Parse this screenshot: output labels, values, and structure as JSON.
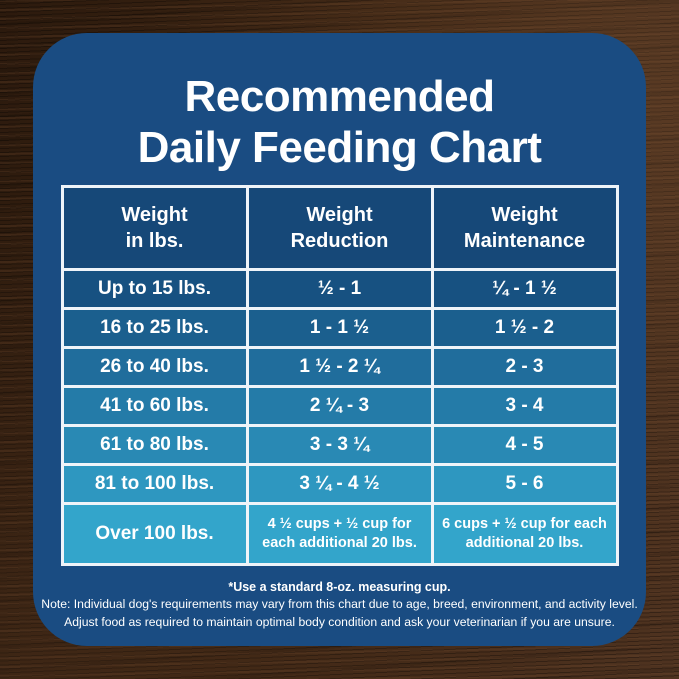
{
  "colors": {
    "card_background": "#1A4C82",
    "header_cell": "#164878",
    "table_border": "#EFF4F9",
    "text": "#FFFFFF",
    "row_colors": [
      "#175181",
      "#1B5F8E",
      "#206D9C",
      "#247BA8",
      "#2989B4",
      "#2E97C0",
      "#33A5CB"
    ]
  },
  "title": {
    "line1": "Recommended",
    "line2": "Daily Feeding Chart"
  },
  "table": {
    "headers": [
      {
        "line1": "Weight",
        "line2": "in lbs."
      },
      {
        "line1": "Weight",
        "line2": "Reduction"
      },
      {
        "line1": "Weight",
        "line2": "Maintenance"
      }
    ],
    "rows": [
      {
        "weight": "Up to 15 lbs.",
        "reduction": "½ - 1",
        "maintenance": "¼ - 1 ½"
      },
      {
        "weight": "16 to 25 lbs.",
        "reduction": "1 - 1 ½",
        "maintenance": "1 ½ - 2"
      },
      {
        "weight": "26 to 40 lbs.",
        "reduction": "1 ½ - 2 ¼",
        "maintenance": "2 - 3"
      },
      {
        "weight": "41 to 60 lbs.",
        "reduction": "2 ¼ - 3",
        "maintenance": "3 - 4"
      },
      {
        "weight": "61 to 80 lbs.",
        "reduction": "3 - 3 ¼",
        "maintenance": "4 - 5"
      },
      {
        "weight": "81 to 100 lbs.",
        "reduction": "3 ¼ - 4 ½",
        "maintenance": "5 - 6"
      },
      {
        "weight": "Over 100 lbs.",
        "reduction": "4 ½ cups  + ½ cup for each additional 20 lbs.",
        "maintenance": "6 cups  + ½ cup for each additional 20 lbs."
      }
    ]
  },
  "footnotes": {
    "measuring_cup": "*Use a standard 8-oz. measuring cup.",
    "note_line1": "Note: Individual dog's requirements may vary from this chart due to age, breed, environment, and activity level.",
    "note_line2": "Adjust food as required to maintain optimal body condition and ask your veterinarian if you are unsure."
  }
}
